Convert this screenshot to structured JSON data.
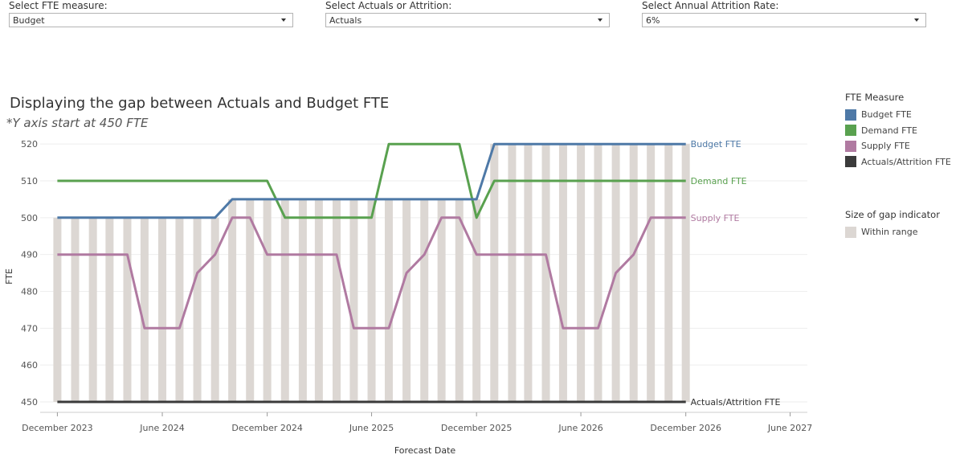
{
  "filters": [
    {
      "label": "Select FTE measure:",
      "value": "Budget"
    },
    {
      "label": "Select Actuals or Attrition:",
      "value": "Actuals"
    },
    {
      "label": "Select Annual Attrition Rate:",
      "value": "6%"
    }
  ],
  "chart_data": {
    "type": "line",
    "title": "Displaying the gap between Actuals and Budget FTE",
    "subtitle": "*Y axis start at 450 FTE",
    "xlabel": "Forecast Date",
    "ylabel": "FTE",
    "ylim": [
      450,
      522
    ],
    "yticks": [
      450,
      460,
      470,
      480,
      490,
      500,
      510,
      520
    ],
    "xlim": [
      "2023-11-01",
      "2027-07-01"
    ],
    "xticks": [
      {
        "date": "2023-12-01",
        "label": "December 2023"
      },
      {
        "date": "2024-06-01",
        "label": "June 2024"
      },
      {
        "date": "2024-12-01",
        "label": "December 2024"
      },
      {
        "date": "2025-06-01",
        "label": "June 2025"
      },
      {
        "date": "2025-12-01",
        "label": "December 2025"
      },
      {
        "date": "2026-06-01",
        "label": "June 2026"
      },
      {
        "date": "2026-12-01",
        "label": "December 2026"
      },
      {
        "date": "2027-06-01",
        "label": "June 2027"
      }
    ],
    "x": [
      "2023-12",
      "2024-01",
      "2024-02",
      "2024-03",
      "2024-04",
      "2024-05",
      "2024-06",
      "2024-07",
      "2024-08",
      "2024-09",
      "2024-10",
      "2024-11",
      "2024-12",
      "2025-01",
      "2025-02",
      "2025-03",
      "2025-04",
      "2025-05",
      "2025-06",
      "2025-07",
      "2025-08",
      "2025-09",
      "2025-10",
      "2025-11",
      "2025-12",
      "2026-01",
      "2026-02",
      "2026-03",
      "2026-04",
      "2026-05",
      "2026-06",
      "2026-07",
      "2026-08",
      "2026-09",
      "2026-10",
      "2026-11",
      "2026-12"
    ],
    "series": [
      {
        "name": "Budget FTE",
        "color": "#4e79a7",
        "values": [
          500,
          500,
          500,
          500,
          500,
          500,
          500,
          500,
          500,
          500,
          505,
          505,
          505,
          505,
          505,
          505,
          505,
          505,
          505,
          505,
          505,
          505,
          505,
          505,
          505,
          520,
          520,
          520,
          520,
          520,
          520,
          520,
          520,
          520,
          520,
          520,
          520
        ]
      },
      {
        "name": "Demand FTE",
        "color": "#59a14f",
        "values": [
          510,
          510,
          510,
          510,
          510,
          510,
          510,
          510,
          510,
          510,
          510,
          510,
          510,
          500,
          500,
          500,
          500,
          500,
          500,
          520,
          520,
          520,
          520,
          520,
          500,
          510,
          510,
          510,
          510,
          510,
          510,
          510,
          510,
          510,
          510,
          510,
          510
        ]
      },
      {
        "name": "Supply FTE",
        "color": "#b07aa1",
        "values": [
          490,
          490,
          490,
          490,
          490,
          470,
          470,
          470,
          485,
          490,
          500,
          500,
          490,
          490,
          490,
          490,
          490,
          470,
          470,
          470,
          485,
          490,
          500,
          500,
          490,
          490,
          490,
          490,
          490,
          470,
          470,
          470,
          485,
          490,
          500,
          500,
          500
        ]
      },
      {
        "name": "Actuals/Attrition FTE",
        "color": "#3b3b3b",
        "values": [
          450,
          450,
          450,
          450,
          450,
          450,
          450,
          450,
          450,
          450,
          450,
          450,
          450,
          450,
          450,
          450,
          450,
          450,
          450,
          450,
          450,
          450,
          450,
          450,
          450,
          450,
          450,
          450,
          450,
          450,
          450,
          450,
          450,
          450,
          450,
          450,
          450
        ]
      }
    ],
    "gap_bar_color": "#dcd7d3",
    "legend": {
      "title": "FTE Measure",
      "items": [
        {
          "label": "Budget FTE",
          "color": "#4e79a7"
        },
        {
          "label": "Demand FTE",
          "color": "#59a14f"
        },
        {
          "label": "Supply FTE",
          "color": "#b07aa1"
        },
        {
          "label": "Actuals/Attrition FTE",
          "color": "#3b3b3b"
        }
      ]
    },
    "gap_legend": {
      "title": "Size of gap indicator",
      "items": [
        {
          "label": "Within range",
          "color": "#dcd7d3"
        }
      ]
    }
  }
}
